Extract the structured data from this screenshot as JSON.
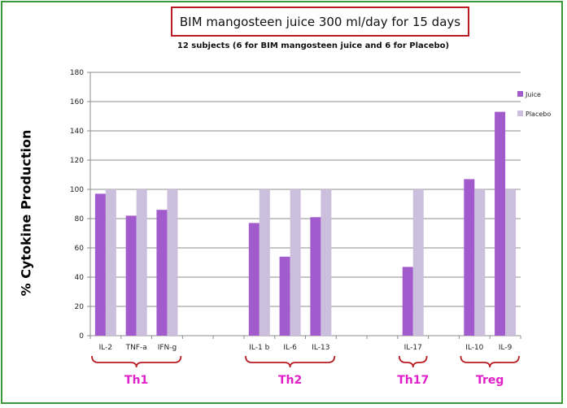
{
  "title": "BIM mangosteen juice 300 ml/day for 15 days",
  "subtitle": "12 subjects (6 for BIM mangosteen juice and 6 for Placebo)",
  "chart_data": {
    "type": "bar",
    "ylabel": "% Cytokine Production",
    "ylim": [
      0,
      180
    ],
    "yticks": [
      0,
      20,
      40,
      60,
      80,
      100,
      120,
      140,
      160,
      180
    ],
    "grid": true,
    "legend_position": "right",
    "slots": [
      "IL-2",
      "TNF-a",
      "IFN-g",
      "",
      "",
      "IL-1 b",
      "IL-6",
      "IL-13",
      "",
      "",
      "IL-17",
      "",
      "IL-10",
      "IL-9"
    ],
    "categories": [
      "IL-2",
      "TNF-a",
      "IFN-g",
      "IL-1 b",
      "IL-6",
      "IL-13",
      "IL-17",
      "IL-10",
      "IL-9"
    ],
    "series": [
      {
        "name": "Juice",
        "color": "#a25bcc",
        "values": [
          97,
          82,
          86,
          77,
          54,
          81,
          47,
          107,
          153
        ]
      },
      {
        "name": "Placebo",
        "color": "#cbbfdd",
        "values": [
          100,
          100,
          100,
          100,
          100,
          100,
          100,
          100,
          100
        ]
      }
    ],
    "groups": [
      {
        "label": "Th1",
        "from": "IL-2",
        "to": "IFN-g"
      },
      {
        "label": "Th2",
        "from": "IL-1 b",
        "to": "IL-13"
      },
      {
        "label": "Th17",
        "from": "IL-17",
        "to": "IL-17"
      },
      {
        "label": "Treg",
        "from": "IL-10",
        "to": "IL-9"
      }
    ],
    "group_label_color": "#e020c8",
    "bracket_color": "#b81c22"
  }
}
